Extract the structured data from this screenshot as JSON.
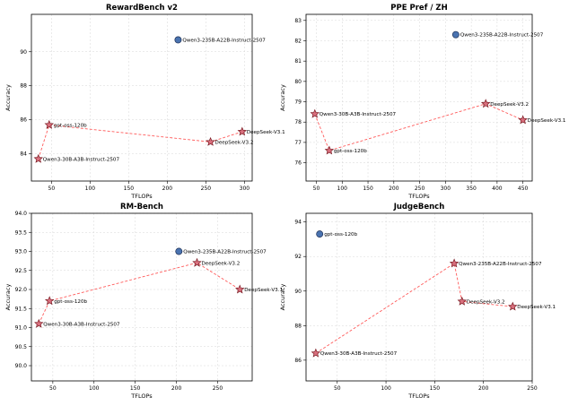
{
  "colors": {
    "frontier_line": "#ff5a5a",
    "star_fill": "#d9707e",
    "star_edge": "#7a1a22",
    "circle_fill": "#4a73b0",
    "circle_edge": "#1d2f55"
  },
  "chart_data": [
    {
      "type": "scatter",
      "title": "RewardBench v2",
      "xlabel": "TFLOPs",
      "ylabel": "Accuracy",
      "xlim": [
        24,
        310
      ],
      "ylim": [
        82.4,
        92.2
      ],
      "xticks": [
        50,
        100,
        150,
        200,
        250,
        300
      ],
      "yticks": [
        84,
        86,
        88,
        90
      ],
      "frontier": [
        {
          "label": "Qwen3-30B-A3B-Instruct-2507",
          "x": 33,
          "y": 83.7
        },
        {
          "label": "gpt-oss-120b",
          "x": 47,
          "y": 85.7
        },
        {
          "label": "DeepSeek-V3.2",
          "x": 256,
          "y": 84.7
        },
        {
          "label": "DeepSeek-V3.1",
          "x": 297,
          "y": 85.3
        }
      ],
      "others": [
        {
          "label": "Qwen3-235B-A22B-Instruct-2507",
          "x": 214,
          "y": 90.7
        }
      ]
    },
    {
      "type": "scatter",
      "title": "PPE Pref / ZH",
      "xlabel": "TFLOPs",
      "ylabel": "Accuracy",
      "xlim": [
        30,
        468
      ],
      "ylim": [
        75.1,
        83.3
      ],
      "xticks": [
        50,
        100,
        150,
        200,
        250,
        300,
        350,
        400,
        450
      ],
      "yticks": [
        76,
        77,
        78,
        79,
        80,
        81,
        82,
        83
      ],
      "frontier": [
        {
          "label": "Qwen3-30B-A3B-Instruct-2507",
          "x": 47,
          "y": 78.4
        },
        {
          "label": "gpt-oss-120b",
          "x": 75,
          "y": 76.6
        },
        {
          "label": "DeepSeek-V3.2",
          "x": 378,
          "y": 78.9
        },
        {
          "label": "DeepSeek-V3.1",
          "x": 450,
          "y": 78.1
        }
      ],
      "others": [
        {
          "label": "Qwen3-235B-A22B-Instruct-2507",
          "x": 320,
          "y": 82.3
        }
      ]
    },
    {
      "type": "scatter",
      "title": "RM-Bench",
      "xlabel": "TFLOPs",
      "ylabel": "Accuracy",
      "xlim": [
        24,
        292
      ],
      "ylim": [
        89.6,
        94.0
      ],
      "xticks": [
        50,
        100,
        150,
        200,
        250
      ],
      "yticks": [
        90.0,
        90.5,
        91.0,
        91.5,
        92.0,
        92.5,
        93.0,
        93.5,
        94.0
      ],
      "tick_decimals": 1,
      "frontier": [
        {
          "label": "Qwen3-30B-A3B-Instruct-2507",
          "x": 33,
          "y": 91.1
        },
        {
          "label": "gpt-oss-120b",
          "x": 46,
          "y": 91.7
        },
        {
          "label": "DeepSeek-V3.2",
          "x": 225,
          "y": 92.7
        },
        {
          "label": "DeepSeek-V3.1",
          "x": 277,
          "y": 92.0
        }
      ],
      "others": [
        {
          "label": "Qwen3-235B-A22B-Instruct-2507",
          "x": 203,
          "y": 93.0
        }
      ]
    },
    {
      "type": "scatter",
      "title": "JudgeBench",
      "xlabel": "TFLOPs",
      "ylabel": "Accuracy",
      "xlim": [
        18,
        250
      ],
      "ylim": [
        84.8,
        94.5
      ],
      "xticks": [
        50,
        100,
        150,
        200,
        250
      ],
      "yticks": [
        86,
        88,
        90,
        92,
        94
      ],
      "frontier": [
        {
          "label": "Qwen3-30B-A3B-Instruct-2507",
          "x": 28,
          "y": 86.4
        },
        {
          "label": "Qwen3-235B-A22B-Instruct-2507",
          "x": 170,
          "y": 91.6
        },
        {
          "label": "DeepSeek-V3.2",
          "x": 178,
          "y": 89.4
        },
        {
          "label": "DeepSeek-V3.1",
          "x": 230,
          "y": 89.1
        }
      ],
      "others": [
        {
          "label": "gpt-oss-120b",
          "x": 32,
          "y": 93.3
        }
      ]
    }
  ]
}
